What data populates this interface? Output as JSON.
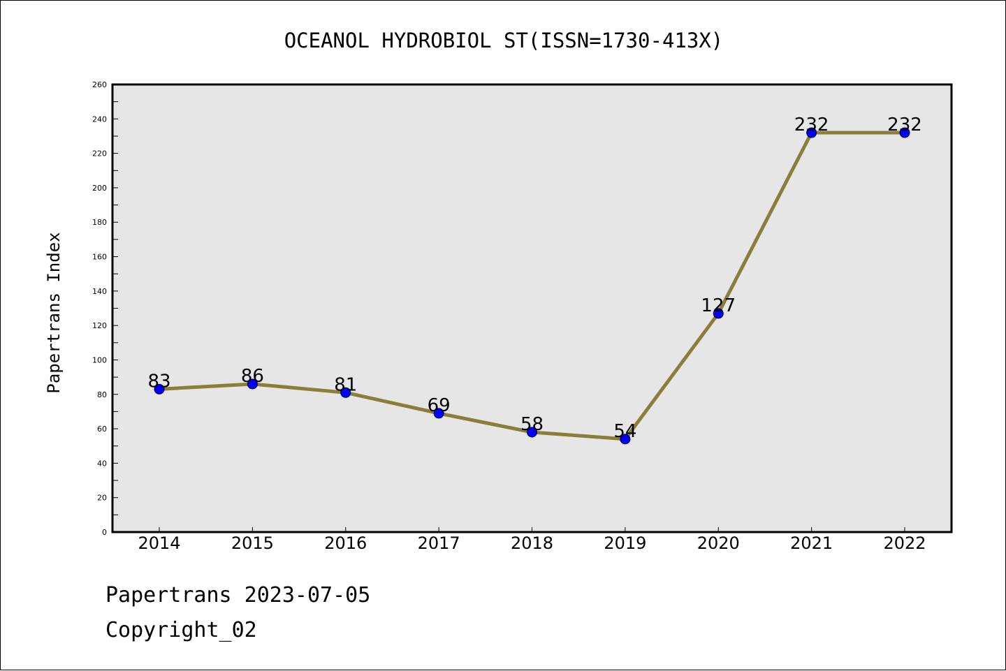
{
  "chart_data": {
    "type": "line",
    "title": "OCEANOL HYDROBIOL ST(ISSN=1730-413X)",
    "ylabel": "Papertrans Index",
    "xlabel": "",
    "categories": [
      "2014",
      "2015",
      "2016",
      "2017",
      "2018",
      "2019",
      "2020",
      "2021",
      "2022"
    ],
    "series": [
      {
        "values": [
          83,
          86,
          81,
          69,
          58,
          54,
          127,
          232,
          232
        ]
      }
    ],
    "ylim": [
      0,
      260
    ],
    "yticks": [
      0,
      20,
      40,
      60,
      80,
      100,
      120,
      140,
      160,
      180,
      200,
      220,
      240,
      260
    ],
    "grid": false,
    "line_color": "#8b7d3a",
    "marker_color": "#0000ff",
    "plot_background": "#e6e6e6"
  },
  "footer": {
    "source": "Papertrans 2023-07-05",
    "copyright": "Copyright_02"
  }
}
